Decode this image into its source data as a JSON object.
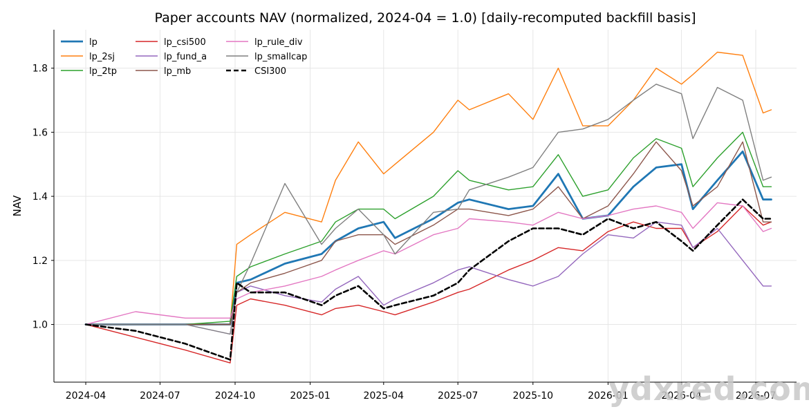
{
  "chart_data": {
    "type": "line",
    "title": "Paper accounts NAV (normalized, 2024-04 = 1.0)  [daily-recomputed backfill basis]",
    "xlabel": "",
    "ylabel": "NAV",
    "ylim": [
      0.82,
      1.92
    ],
    "yticks": [
      1.0,
      1.2,
      1.4,
      1.6,
      1.8
    ],
    "ytick_labels": [
      "1.0",
      "1.2",
      "1.4",
      "1.6",
      "1.8"
    ],
    "x_range": [
      "2024-02-22",
      "2026-08-20"
    ],
    "xticks": [
      "2024-04-01",
      "2024-07-01",
      "2024-10-01",
      "2025-01-01",
      "2025-04-01",
      "2025-07-01",
      "2025-10-01",
      "2026-01-01",
      "2026-04-01",
      "2026-07-01"
    ],
    "xtick_labels": [
      "2024-04",
      "2024-07",
      "2024-10",
      "2025-01",
      "2025-04",
      "2025-07",
      "2025-10",
      "2026-01",
      "2026-04",
      "2026-07"
    ],
    "grid": true,
    "legend_position": "top-left",
    "series": [
      {
        "name": "lp",
        "color": "#1f77b4",
        "width": 2.8,
        "dash": "",
        "x": [
          "2024-04-01",
          "2024-06-01",
          "2024-08-01",
          "2024-09-25",
          "2024-10-03",
          "2024-10-20",
          "2024-12-01",
          "2025-01-15",
          "2025-02-01",
          "2025-03-01",
          "2025-04-01",
          "2025-04-15",
          "2025-06-01",
          "2025-07-01",
          "2025-07-15",
          "2025-09-01",
          "2025-10-01",
          "2025-11-01",
          "2025-12-01",
          "2026-01-01",
          "2026-02-01",
          "2026-03-01",
          "2026-04-01",
          "2026-04-15",
          "2026-05-15",
          "2026-06-15",
          "2026-07-10",
          "2026-07-20"
        ],
        "y": [
          1.0,
          1.0,
          1.0,
          1.0,
          1.13,
          1.14,
          1.19,
          1.22,
          1.26,
          1.3,
          1.32,
          1.27,
          1.33,
          1.38,
          1.39,
          1.36,
          1.37,
          1.47,
          1.33,
          1.34,
          1.43,
          1.49,
          1.5,
          1.36,
          1.45,
          1.54,
          1.39,
          1.39
        ]
      },
      {
        "name": "lp_2sj",
        "color": "#ff7f0e",
        "width": 1.4,
        "dash": "",
        "x": [
          "2024-04-01",
          "2024-06-01",
          "2024-08-01",
          "2024-09-25",
          "2024-10-03",
          "2024-10-20",
          "2024-12-01",
          "2025-01-15",
          "2025-02-01",
          "2025-03-01",
          "2025-04-01",
          "2025-04-15",
          "2025-06-01",
          "2025-07-01",
          "2025-07-15",
          "2025-09-01",
          "2025-10-01",
          "2025-11-01",
          "2025-12-01",
          "2026-01-01",
          "2026-02-01",
          "2026-03-01",
          "2026-04-01",
          "2026-04-15",
          "2026-05-15",
          "2026-06-15",
          "2026-07-10",
          "2026-07-20"
        ],
        "y": [
          1.0,
          1.0,
          1.0,
          1.0,
          1.25,
          1.28,
          1.35,
          1.32,
          1.45,
          1.57,
          1.47,
          1.5,
          1.6,
          1.7,
          1.67,
          1.72,
          1.64,
          1.8,
          1.62,
          1.62,
          1.7,
          1.8,
          1.75,
          1.78,
          1.85,
          1.84,
          1.66,
          1.67
        ]
      },
      {
        "name": "lp_2tp",
        "color": "#2ca02c",
        "width": 1.4,
        "dash": "",
        "x": [
          "2024-04-01",
          "2024-06-01",
          "2024-08-01",
          "2024-09-25",
          "2024-10-03",
          "2024-10-20",
          "2024-12-01",
          "2025-01-15",
          "2025-02-01",
          "2025-03-01",
          "2025-04-01",
          "2025-04-15",
          "2025-06-01",
          "2025-07-01",
          "2025-07-15",
          "2025-09-01",
          "2025-10-01",
          "2025-11-01",
          "2025-12-01",
          "2026-01-01",
          "2026-02-01",
          "2026-03-01",
          "2026-04-01",
          "2026-04-15",
          "2026-05-15",
          "2026-06-15",
          "2026-07-10",
          "2026-07-20"
        ],
        "y": [
          1.0,
          1.0,
          1.0,
          1.01,
          1.15,
          1.18,
          1.22,
          1.26,
          1.32,
          1.36,
          1.36,
          1.33,
          1.4,
          1.48,
          1.45,
          1.42,
          1.43,
          1.53,
          1.4,
          1.42,
          1.52,
          1.58,
          1.55,
          1.43,
          1.52,
          1.6,
          1.43,
          1.43
        ]
      },
      {
        "name": "lp_csi500",
        "color": "#d62728",
        "width": 1.4,
        "dash": "",
        "x": [
          "2024-04-01",
          "2024-06-01",
          "2024-08-01",
          "2024-09-25",
          "2024-10-03",
          "2024-10-20",
          "2024-12-01",
          "2025-01-15",
          "2025-02-01",
          "2025-03-01",
          "2025-04-01",
          "2025-04-15",
          "2025-06-01",
          "2025-07-01",
          "2025-07-15",
          "2025-09-01",
          "2025-10-01",
          "2025-11-01",
          "2025-12-01",
          "2026-01-01",
          "2026-02-01",
          "2026-03-01",
          "2026-04-01",
          "2026-04-15",
          "2026-05-15",
          "2026-06-15",
          "2026-07-10",
          "2026-07-20"
        ],
        "y": [
          1.0,
          0.96,
          0.92,
          0.88,
          1.06,
          1.08,
          1.06,
          1.03,
          1.05,
          1.06,
          1.04,
          1.03,
          1.07,
          1.1,
          1.11,
          1.17,
          1.2,
          1.24,
          1.23,
          1.29,
          1.32,
          1.3,
          1.3,
          1.24,
          1.29,
          1.37,
          1.31,
          1.32
        ]
      },
      {
        "name": "lp_fund_a",
        "color": "#9467bd",
        "width": 1.4,
        "dash": "",
        "x": [
          "2024-04-01",
          "2024-06-01",
          "2024-08-01",
          "2024-09-25",
          "2024-10-03",
          "2024-10-20",
          "2024-12-01",
          "2025-01-15",
          "2025-02-01",
          "2025-03-01",
          "2025-04-01",
          "2025-04-15",
          "2025-06-01",
          "2025-07-01",
          "2025-07-15",
          "2025-09-01",
          "2025-10-01",
          "2025-11-01",
          "2025-12-01",
          "2026-01-01",
          "2026-02-01",
          "2026-03-01",
          "2026-04-01",
          "2026-04-15",
          "2026-05-15",
          "2026-06-15",
          "2026-07-10",
          "2026-07-20"
        ],
        "y": [
          1.0,
          1.0,
          1.0,
          0.97,
          1.1,
          1.12,
          1.09,
          1.07,
          1.11,
          1.15,
          1.06,
          1.08,
          1.13,
          1.17,
          1.18,
          1.14,
          1.12,
          1.15,
          1.22,
          1.28,
          1.27,
          1.32,
          1.31,
          1.24,
          1.3,
          1.2,
          1.12,
          1.12
        ]
      },
      {
        "name": "lp_mb",
        "color": "#8c564b",
        "width": 1.4,
        "dash": "",
        "x": [
          "2024-04-01",
          "2024-06-01",
          "2024-08-01",
          "2024-09-25",
          "2024-10-03",
          "2024-10-20",
          "2024-12-01",
          "2025-01-15",
          "2025-02-01",
          "2025-03-01",
          "2025-04-01",
          "2025-04-15",
          "2025-06-01",
          "2025-07-01",
          "2025-07-15",
          "2025-09-01",
          "2025-10-01",
          "2025-11-01",
          "2025-12-01",
          "2026-01-01",
          "2026-02-01",
          "2026-03-01",
          "2026-04-01",
          "2026-04-15",
          "2026-05-15",
          "2026-06-15",
          "2026-07-10",
          "2026-07-20"
        ],
        "y": [
          1.0,
          1.0,
          1.0,
          1.0,
          1.1,
          1.13,
          1.16,
          1.2,
          1.26,
          1.28,
          1.28,
          1.25,
          1.31,
          1.36,
          1.36,
          1.34,
          1.36,
          1.43,
          1.33,
          1.37,
          1.47,
          1.57,
          1.48,
          1.37,
          1.43,
          1.57,
          1.32,
          1.32
        ]
      },
      {
        "name": "lp_rule_div",
        "color": "#e377c2",
        "width": 1.4,
        "dash": "",
        "x": [
          "2024-04-01",
          "2024-06-01",
          "2024-08-01",
          "2024-09-25",
          "2024-10-03",
          "2024-10-20",
          "2024-12-01",
          "2025-01-15",
          "2025-02-01",
          "2025-03-01",
          "2025-04-01",
          "2025-04-15",
          "2025-06-01",
          "2025-07-01",
          "2025-07-15",
          "2025-09-01",
          "2025-10-01",
          "2025-11-01",
          "2025-12-01",
          "2026-01-01",
          "2026-02-01",
          "2026-03-01",
          "2026-04-01",
          "2026-04-15",
          "2026-05-15",
          "2026-06-15",
          "2026-07-10",
          "2026-07-20"
        ],
        "y": [
          1.0,
          1.04,
          1.02,
          1.02,
          1.08,
          1.1,
          1.12,
          1.15,
          1.17,
          1.2,
          1.23,
          1.22,
          1.28,
          1.3,
          1.33,
          1.32,
          1.31,
          1.35,
          1.33,
          1.34,
          1.36,
          1.37,
          1.35,
          1.3,
          1.38,
          1.37,
          1.29,
          1.3
        ]
      },
      {
        "name": "lp_smallcap",
        "color": "#7f7f7f",
        "width": 1.4,
        "dash": "",
        "x": [
          "2024-04-01",
          "2024-06-01",
          "2024-08-01",
          "2024-09-25",
          "2024-10-03",
          "2024-10-20",
          "2024-12-01",
          "2025-01-15",
          "2025-02-01",
          "2025-03-01",
          "2025-04-01",
          "2025-04-15",
          "2025-06-01",
          "2025-07-01",
          "2025-07-15",
          "2025-09-01",
          "2025-10-01",
          "2025-11-01",
          "2025-12-01",
          "2026-01-01",
          "2026-02-01",
          "2026-03-01",
          "2026-04-01",
          "2026-04-15",
          "2026-05-15",
          "2026-06-15",
          "2026-07-10",
          "2026-07-20"
        ],
        "y": [
          1.0,
          1.0,
          1.0,
          0.97,
          1.1,
          1.19,
          1.44,
          1.25,
          1.3,
          1.36,
          1.28,
          1.22,
          1.35,
          1.36,
          1.42,
          1.46,
          1.49,
          1.6,
          1.61,
          1.64,
          1.7,
          1.75,
          1.72,
          1.58,
          1.74,
          1.7,
          1.45,
          1.46
        ]
      },
      {
        "name": "CSI300",
        "color": "#000000",
        "width": 2.6,
        "dash": "7,4",
        "x": [
          "2024-04-01",
          "2024-06-01",
          "2024-08-01",
          "2024-09-25",
          "2024-10-03",
          "2024-10-20",
          "2024-12-01",
          "2025-01-15",
          "2025-02-01",
          "2025-03-01",
          "2025-04-01",
          "2025-04-15",
          "2025-06-01",
          "2025-07-01",
          "2025-07-15",
          "2025-09-01",
          "2025-10-01",
          "2025-11-01",
          "2025-12-01",
          "2026-01-01",
          "2026-02-01",
          "2026-03-01",
          "2026-04-01",
          "2026-04-15",
          "2026-05-15",
          "2026-06-15",
          "2026-07-10",
          "2026-07-20"
        ],
        "y": [
          1.0,
          0.98,
          0.94,
          0.89,
          1.13,
          1.1,
          1.1,
          1.06,
          1.09,
          1.12,
          1.05,
          1.06,
          1.09,
          1.13,
          1.17,
          1.26,
          1.3,
          1.3,
          1.28,
          1.33,
          1.3,
          1.32,
          1.26,
          1.23,
          1.31,
          1.39,
          1.33,
          1.33
        ]
      }
    ]
  },
  "watermark": "ydxred.com"
}
